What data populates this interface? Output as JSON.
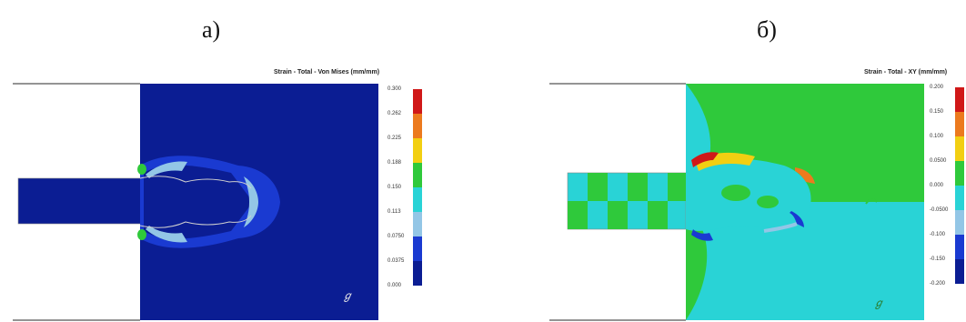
{
  "panels": [
    {
      "label": "а)",
      "title": "Strain - Total - Von Mises (mm/mm)",
      "legend_values": [
        "0.300",
        "0.262",
        "0.225",
        "0.188",
        "0.150",
        "0.113",
        "0.0750",
        "0.0375",
        "0.000"
      ],
      "legend_colors": [
        "#d01818",
        "#ec7a1e",
        "#f2cf12",
        "#2fc93b",
        "#29d3d6",
        "#93c6e6",
        "#1a3ad1",
        "#0b1d93"
      ],
      "step_marker": "ℊ"
    },
    {
      "label": "б)",
      "title": "Strain - Total - XY (mm/mm)",
      "legend_values": [
        "0.200",
        "0.150",
        "0.100",
        "0.0500",
        "0.000",
        "-0.0500",
        "-0.100",
        "-0.150",
        "-0.200"
      ],
      "legend_colors": [
        "#d01818",
        "#ec7a1e",
        "#f2cf12",
        "#2fc93b",
        "#29d3d6",
        "#93c6e6",
        "#1a3ad1",
        "#0b1d93"
      ],
      "step_marker": "ℊ"
    }
  ],
  "colors": {
    "background_a": "#0b1d93",
    "mesh_line": "#cfcfcf",
    "die_outline": "#555555"
  }
}
